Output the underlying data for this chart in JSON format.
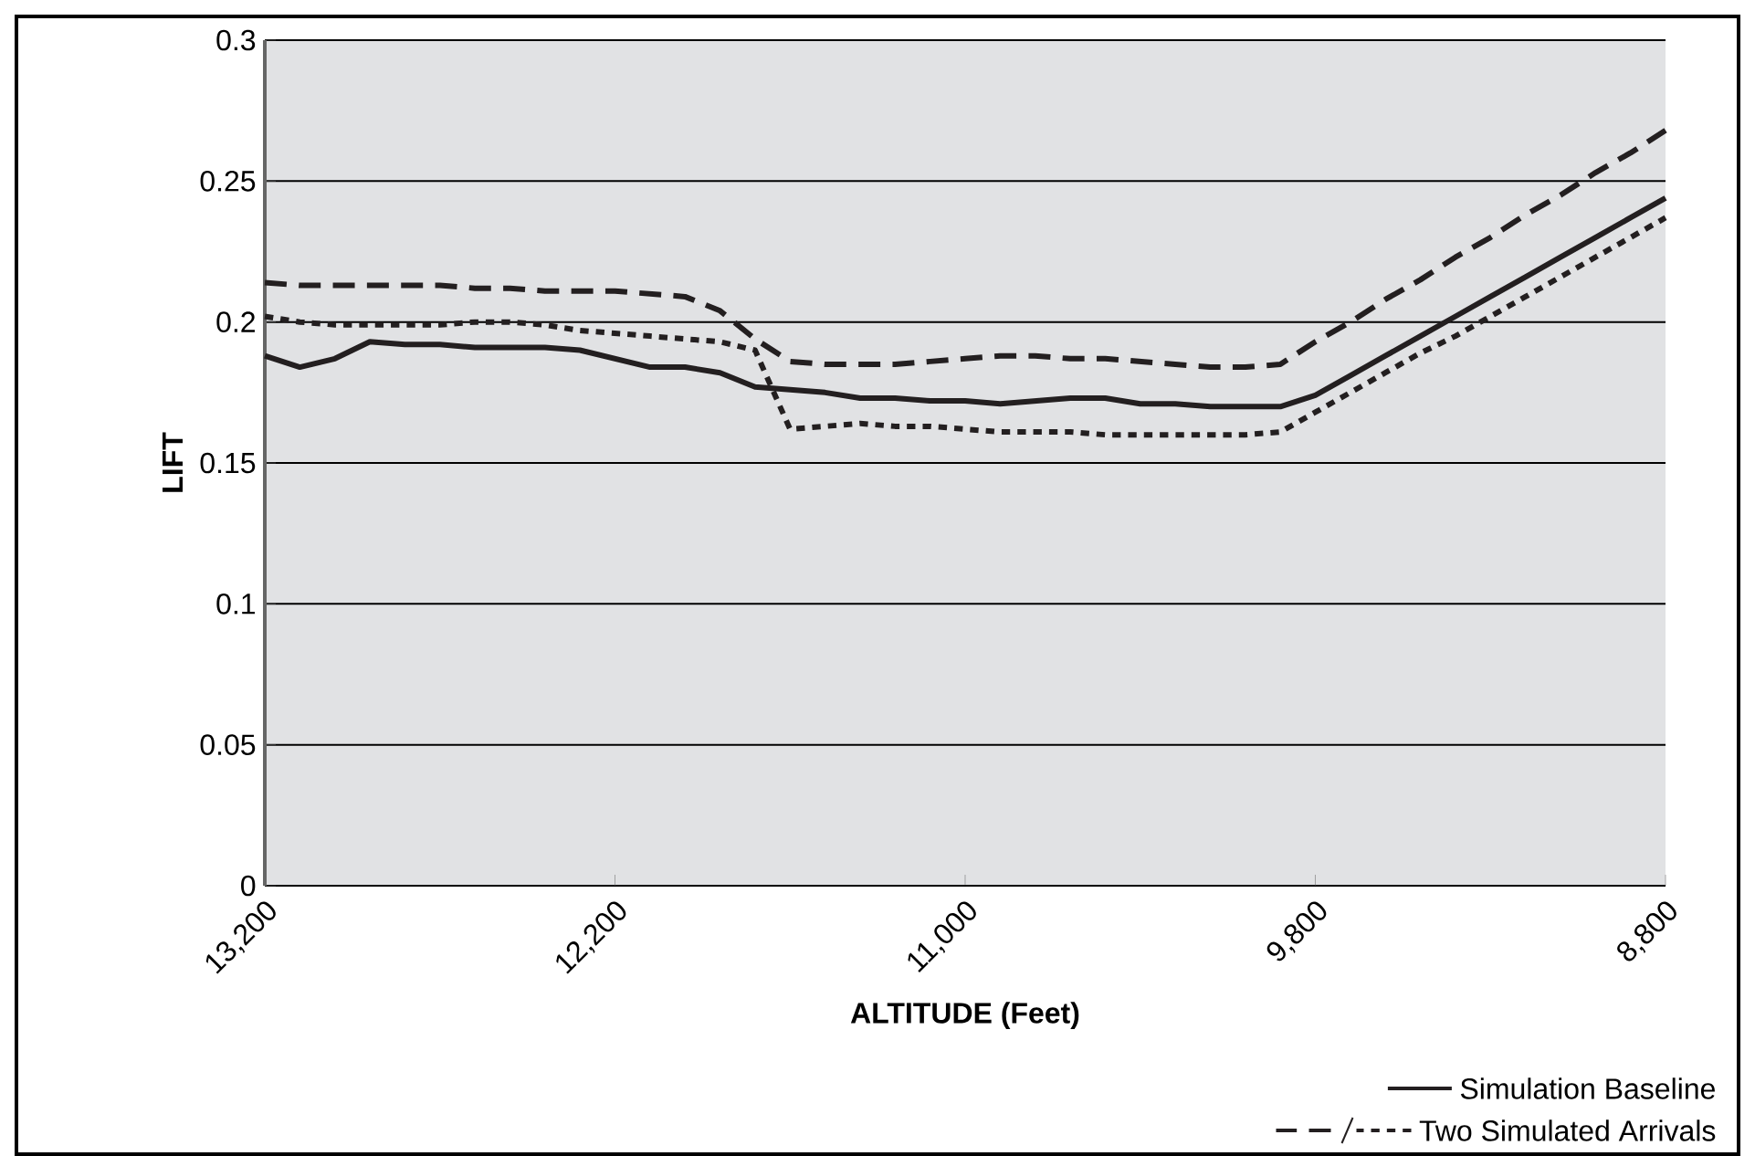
{
  "chart_data": {
    "type": "line",
    "xlabel": "ALTITUDE (Feet)",
    "ylabel": "LIFT",
    "categories": [
      "13,200",
      null,
      null,
      null,
      null,
      null,
      null,
      null,
      null,
      null,
      "12,200",
      null,
      null,
      null,
      null,
      null,
      null,
      null,
      null,
      null,
      "11,000",
      null,
      null,
      null,
      null,
      null,
      null,
      null,
      null,
      null,
      "9,800",
      null,
      null,
      null,
      null,
      null,
      null,
      null,
      null,
      null,
      "8,800"
    ],
    "ylim": [
      0,
      0.3
    ],
    "yticks": [
      0,
      0.05,
      0.1,
      0.15,
      0.2,
      0.25,
      0.3
    ],
    "grid": "y",
    "legend": "bottom right",
    "marker": "none",
    "series": [
      {
        "name": "Simulation Baseline",
        "color": "#231f20",
        "line_style": "solid",
        "values": [
          0.188,
          0.184,
          0.187,
          0.193,
          0.192,
          0.192,
          0.191,
          0.191,
          0.191,
          0.19,
          0.187,
          0.184,
          0.184,
          0.182,
          0.177,
          0.176,
          0.175,
          0.173,
          0.173,
          0.172,
          0.172,
          0.171,
          0.172,
          0.173,
          0.173,
          0.171,
          0.171,
          0.17,
          0.17,
          0.17,
          0.174,
          0.181,
          0.188,
          0.195,
          0.202,
          0.209,
          0.216,
          0.223,
          0.23,
          0.237,
          0.244
        ]
      },
      {
        "name": "Two Simulated Arrivals",
        "color": "#231f20",
        "line_style": "dashed",
        "values": [
          0.214,
          0.213,
          0.213,
          0.213,
          0.213,
          0.213,
          0.212,
          0.212,
          0.211,
          0.211,
          0.211,
          0.21,
          0.209,
          0.204,
          0.194,
          0.186,
          0.185,
          0.185,
          0.185,
          0.186,
          0.187,
          0.188,
          0.188,
          0.187,
          0.187,
          0.186,
          0.185,
          0.184,
          0.184,
          0.185,
          0.193,
          0.2,
          0.208,
          0.215,
          0.223,
          0.23,
          0.238,
          0.245,
          0.253,
          0.26,
          0.268
        ]
      },
      {
        "color": "#231f20",
        "line_style": "dotted",
        "values": [
          0.202,
          0.2,
          0.199,
          0.199,
          0.199,
          0.199,
          0.2,
          0.2,
          0.199,
          0.197,
          0.196,
          0.195,
          0.194,
          0.193,
          0.19,
          0.162,
          0.163,
          0.164,
          0.163,
          0.163,
          0.162,
          0.161,
          0.161,
          0.161,
          0.16,
          0.16,
          0.16,
          0.16,
          0.16,
          0.161,
          0.168,
          0.175,
          0.182,
          0.189,
          0.195,
          0.202,
          0.209,
          0.216,
          0.223,
          0.23,
          0.237
        ]
      }
    ]
  }
}
